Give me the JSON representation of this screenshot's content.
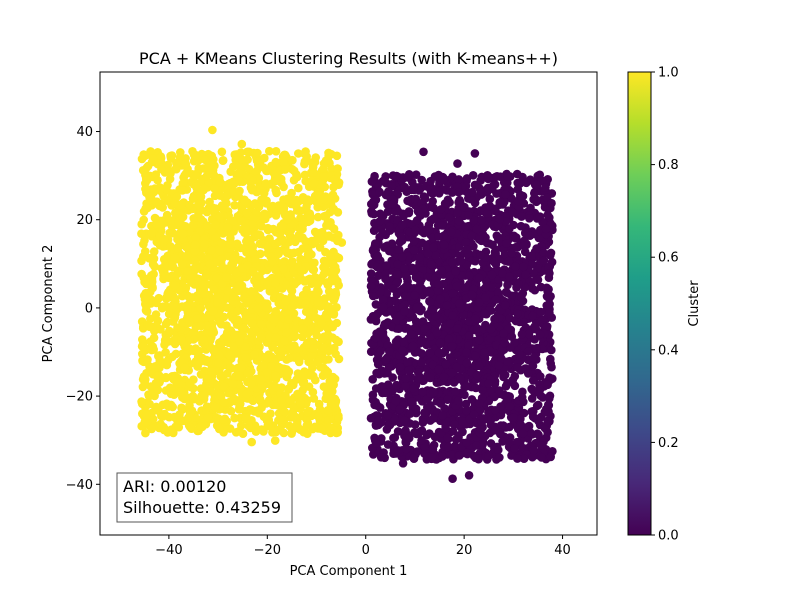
{
  "chart_data": {
    "type": "scatter",
    "title": "PCA + KMeans Clustering Results (with K-means++)",
    "xlabel": "PCA Component 1",
    "ylabel": "PCA Component 2",
    "xlim": [
      -54,
      47
    ],
    "ylim": [
      -51.5,
      53.5
    ],
    "x_ticks": [
      -40,
      -20,
      0,
      20,
      40
    ],
    "y_ticks": [
      -40,
      -20,
      0,
      20,
      40
    ],
    "x_tick_labels": [
      "−40",
      "−20",
      "0",
      "20",
      "40"
    ],
    "y_tick_labels": [
      "−40",
      "−20",
      "0",
      "20",
      "40"
    ],
    "grid": false,
    "clusters": [
      {
        "label": 1,
        "color": "#fde725",
        "x_range": [
          -50,
          -1
        ],
        "y_range": [
          -41,
          48
        ]
      },
      {
        "label": 0,
        "color": "#440154",
        "x_range": [
          -3,
          42
        ],
        "y_range": [
          -47,
          43
        ]
      }
    ],
    "annotation": {
      "ari_text": "ARI: 0.00120",
      "silhouette_text": "Silhouette: 0.43259"
    },
    "colorbar": {
      "label": "Cluster",
      "range": [
        0.0,
        1.0
      ],
      "ticks": [
        0.0,
        0.2,
        0.4,
        0.6,
        0.8,
        1.0
      ],
      "tick_labels": [
        "0.0",
        "0.2",
        "0.4",
        "0.6",
        "0.8",
        "1.0"
      ],
      "colormap": "viridis",
      "stops": [
        "#440154",
        "#482878",
        "#3e4989",
        "#31688e",
        "#26828e",
        "#1f9e89",
        "#35b779",
        "#6ece58",
        "#b5de2b",
        "#fde725"
      ]
    }
  }
}
